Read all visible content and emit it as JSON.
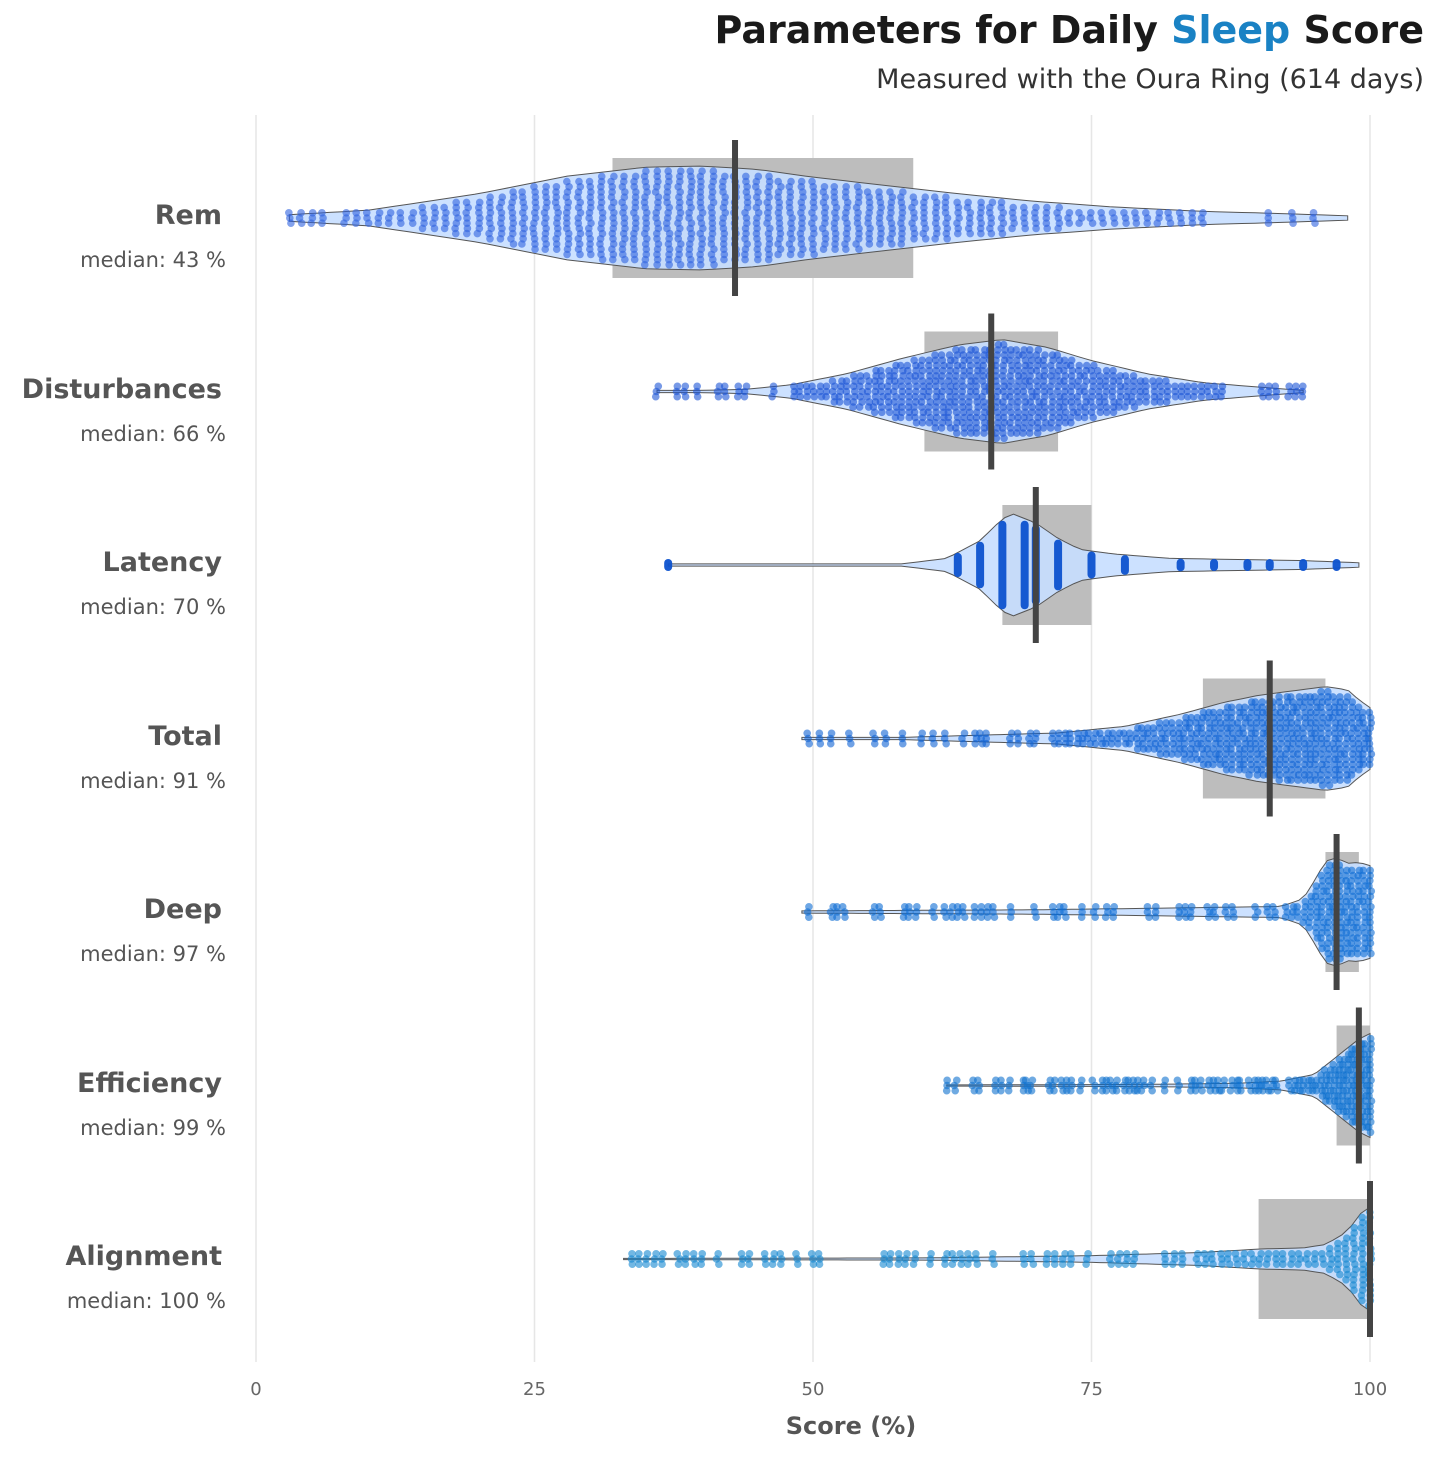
{
  "chart_data": {
    "type": "violin",
    "title_parts": [
      "Parameters for Daily ",
      "Sleep",
      " Score"
    ],
    "subtitle": "Measured with the Oura Ring (614 days)",
    "xlabel": "Score (%)",
    "xlim": [
      0,
      100
    ],
    "xticks": [
      "0",
      "25",
      "50",
      "75",
      "100"
    ],
    "grid": true,
    "colors": {
      "title_highlight": "#1a82c4",
      "violin_fill": "#c6deff",
      "box": "#bdbdbd",
      "median_line": "#444444"
    },
    "categories": [
      {
        "name": "Rem",
        "median_label": "median: 43 %",
        "median": 43,
        "q1": 32,
        "q3": 59,
        "min": 3,
        "max": 98,
        "color": "#2f63e0",
        "density": [
          [
            3,
            0.03
          ],
          [
            10,
            0.07
          ],
          [
            20,
            0.22
          ],
          [
            28,
            0.38
          ],
          [
            35,
            0.46
          ],
          [
            40,
            0.47
          ],
          [
            45,
            0.44
          ],
          [
            50,
            0.37
          ],
          [
            56,
            0.3
          ],
          [
            63,
            0.22
          ],
          [
            70,
            0.15
          ],
          [
            77,
            0.1
          ],
          [
            85,
            0.06
          ],
          [
            92,
            0.04
          ],
          [
            98,
            0.02
          ]
        ]
      },
      {
        "name": "Disturbances",
        "median_label": "median: 66 %",
        "median": 66,
        "q1": 60,
        "q3": 72,
        "min": 36,
        "max": 94,
        "color": "#1c55d6",
        "density": [
          [
            36,
            0.01
          ],
          [
            40,
            0.01
          ],
          [
            44,
            0.02
          ],
          [
            48,
            0.06
          ],
          [
            53,
            0.16
          ],
          [
            58,
            0.3
          ],
          [
            63,
            0.42
          ],
          [
            67,
            0.47
          ],
          [
            71,
            0.4
          ],
          [
            75,
            0.28
          ],
          [
            80,
            0.16
          ],
          [
            85,
            0.08
          ],
          [
            90,
            0.04
          ],
          [
            94,
            0.01
          ]
        ]
      },
      {
        "name": "Latency",
        "median_label": "median: 70 %",
        "median": 70,
        "q1": 67,
        "q3": 75,
        "min": 37,
        "max": 99,
        "color": "#0d52cf",
        "density": [
          [
            37,
            0.01
          ],
          [
            58,
            0.01
          ],
          [
            62,
            0.06
          ],
          [
            65,
            0.22
          ],
          [
            67,
            0.42
          ],
          [
            68,
            0.46
          ],
          [
            70,
            0.38
          ],
          [
            72,
            0.24
          ],
          [
            74,
            0.14
          ],
          [
            77,
            0.1
          ],
          [
            82,
            0.06
          ],
          [
            88,
            0.05
          ],
          [
            94,
            0.04
          ],
          [
            99,
            0.02
          ]
        ]
      },
      {
        "name": "Total",
        "median_label": "median: 91 %",
        "median": 91,
        "q1": 85,
        "q3": 96,
        "min": 49,
        "max": 100,
        "color": "#0f62d4",
        "density": [
          [
            49,
            0.01
          ],
          [
            58,
            0.01
          ],
          [
            65,
            0.03
          ],
          [
            72,
            0.05
          ],
          [
            78,
            0.11
          ],
          [
            83,
            0.22
          ],
          [
            87,
            0.33
          ],
          [
            90,
            0.39
          ],
          [
            93,
            0.43
          ],
          [
            96,
            0.47
          ],
          [
            98,
            0.44
          ],
          [
            99,
            0.35
          ],
          [
            100,
            0.28
          ]
        ]
      },
      {
        "name": "Deep",
        "median_label": "median: 97 %",
        "median": 97,
        "q1": 96,
        "q3": 99,
        "min": 49,
        "max": 100,
        "color": "#0e6cd3",
        "density": [
          [
            49,
            0.01
          ],
          [
            70,
            0.02
          ],
          [
            85,
            0.04
          ],
          [
            92,
            0.05
          ],
          [
            94,
            0.12
          ],
          [
            95,
            0.28
          ],
          [
            96,
            0.46
          ],
          [
            97,
            0.49
          ],
          [
            98,
            0.44
          ],
          [
            99,
            0.45
          ],
          [
            100,
            0.42
          ]
        ]
      },
      {
        "name": "Efficiency",
        "median_label": "median: 99 %",
        "median": 99,
        "q1": 97,
        "q3": 100,
        "min": 62,
        "max": 100,
        "color": "#0f72cf",
        "density": [
          [
            62,
            0.005
          ],
          [
            80,
            0.01
          ],
          [
            88,
            0.02
          ],
          [
            92,
            0.04
          ],
          [
            95,
            0.1
          ],
          [
            96,
            0.18
          ],
          [
            97,
            0.26
          ],
          [
            98,
            0.34
          ],
          [
            99,
            0.42
          ],
          [
            100,
            0.47
          ]
        ]
      },
      {
        "name": "Alignment",
        "median_label": "median: 100 %",
        "median": 100,
        "q1": 90,
        "q3": 100,
        "min": 33,
        "max": 100,
        "color": "#1487d0",
        "density": [
          [
            33,
            0.005
          ],
          [
            60,
            0.01
          ],
          [
            75,
            0.03
          ],
          [
            85,
            0.06
          ],
          [
            90,
            0.09
          ],
          [
            94,
            0.1
          ],
          [
            96,
            0.13
          ],
          [
            98,
            0.25
          ],
          [
            99,
            0.4
          ],
          [
            100,
            0.47
          ]
        ]
      }
    ]
  }
}
